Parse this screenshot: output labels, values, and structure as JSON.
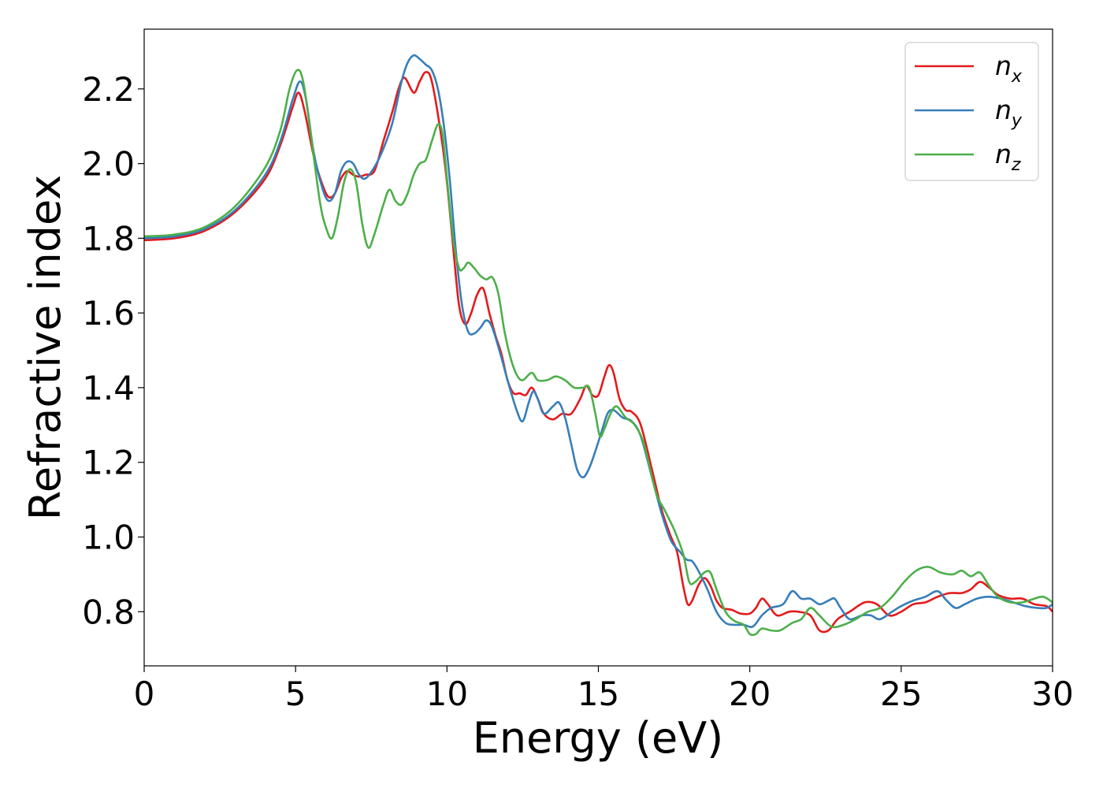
{
  "chart_data": {
    "type": "line",
    "xlabel": "Energy (eV)",
    "ylabel": "Refractive index",
    "xlim": [
      0,
      30
    ],
    "ylim": [
      0.655,
      2.36
    ],
    "x_ticks": [
      0,
      5,
      10,
      15,
      20,
      25,
      30
    ],
    "x_tick_labels": [
      "0",
      "5",
      "10",
      "15",
      "20",
      "25",
      "30"
    ],
    "y_ticks": [
      0.8,
      1.0,
      1.2,
      1.4,
      1.6,
      1.8,
      2.0,
      2.2
    ],
    "y_tick_labels": [
      "0.8",
      "1.0",
      "1.2",
      "1.4",
      "1.6",
      "1.8",
      "2.0",
      "2.2"
    ],
    "grid": false,
    "legend_position": "top-right",
    "series": [
      {
        "name": "n_x",
        "label_base": "n",
        "label_sub": "x",
        "color": "#e41a1c",
        "points": [
          [
            0,
            1.795
          ],
          [
            1,
            1.8
          ],
          [
            2,
            1.82
          ],
          [
            3,
            1.87
          ],
          [
            4,
            1.96
          ],
          [
            4.5,
            2.05
          ],
          [
            4.9,
            2.15
          ],
          [
            5.1,
            2.19
          ],
          [
            5.3,
            2.14
          ],
          [
            5.6,
            2.02
          ],
          [
            5.9,
            1.94
          ],
          [
            6.1,
            1.91
          ],
          [
            6.3,
            1.92
          ],
          [
            6.5,
            1.96
          ],
          [
            6.7,
            1.98
          ],
          [
            6.9,
            1.97
          ],
          [
            7.1,
            1.965
          ],
          [
            7.3,
            1.97
          ],
          [
            7.6,
            1.98
          ],
          [
            7.9,
            2.06
          ],
          [
            8.2,
            2.14
          ],
          [
            8.4,
            2.2
          ],
          [
            8.6,
            2.23
          ],
          [
            8.9,
            2.19
          ],
          [
            9.1,
            2.22
          ],
          [
            9.3,
            2.245
          ],
          [
            9.5,
            2.22
          ],
          [
            9.8,
            2.08
          ],
          [
            10.0,
            1.95
          ],
          [
            10.2,
            1.78
          ],
          [
            10.4,
            1.62
          ],
          [
            10.6,
            1.57
          ],
          [
            10.8,
            1.6
          ],
          [
            11.0,
            1.65
          ],
          [
            11.2,
            1.665
          ],
          [
            11.4,
            1.6
          ],
          [
            11.6,
            1.54
          ],
          [
            11.8,
            1.49
          ],
          [
            12.0,
            1.42
          ],
          [
            12.2,
            1.385
          ],
          [
            12.4,
            1.385
          ],
          [
            12.6,
            1.38
          ],
          [
            12.8,
            1.4
          ],
          [
            13.0,
            1.37
          ],
          [
            13.2,
            1.33
          ],
          [
            13.5,
            1.315
          ],
          [
            13.8,
            1.33
          ],
          [
            14.1,
            1.33
          ],
          [
            14.4,
            1.37
          ],
          [
            14.6,
            1.405
          ],
          [
            14.8,
            1.38
          ],
          [
            15.0,
            1.38
          ],
          [
            15.2,
            1.43
          ],
          [
            15.35,
            1.46
          ],
          [
            15.5,
            1.44
          ],
          [
            15.7,
            1.37
          ],
          [
            15.9,
            1.34
          ],
          [
            16.1,
            1.335
          ],
          [
            16.4,
            1.3
          ],
          [
            16.8,
            1.17
          ],
          [
            17.1,
            1.07
          ],
          [
            17.4,
            1.0
          ],
          [
            17.6,
            0.96
          ],
          [
            17.8,
            0.87
          ],
          [
            17.95,
            0.82
          ],
          [
            18.1,
            0.83
          ],
          [
            18.3,
            0.87
          ],
          [
            18.5,
            0.89
          ],
          [
            18.7,
            0.87
          ],
          [
            18.9,
            0.83
          ],
          [
            19.1,
            0.81
          ],
          [
            19.4,
            0.805
          ],
          [
            19.7,
            0.795
          ],
          [
            20.0,
            0.795
          ],
          [
            20.2,
            0.81
          ],
          [
            20.4,
            0.835
          ],
          [
            20.6,
            0.82
          ],
          [
            20.9,
            0.79
          ],
          [
            21.3,
            0.8
          ],
          [
            21.6,
            0.8
          ],
          [
            22.0,
            0.79
          ],
          [
            22.3,
            0.75
          ],
          [
            22.6,
            0.75
          ],
          [
            22.9,
            0.78
          ],
          [
            23.3,
            0.8
          ],
          [
            23.8,
            0.825
          ],
          [
            24.2,
            0.82
          ],
          [
            24.6,
            0.79
          ],
          [
            25.0,
            0.8
          ],
          [
            25.4,
            0.82
          ],
          [
            25.8,
            0.825
          ],
          [
            26.2,
            0.84
          ],
          [
            26.6,
            0.85
          ],
          [
            27.0,
            0.85
          ],
          [
            27.3,
            0.86
          ],
          [
            27.6,
            0.88
          ],
          [
            27.9,
            0.865
          ],
          [
            28.2,
            0.845
          ],
          [
            28.6,
            0.835
          ],
          [
            29.0,
            0.835
          ],
          [
            29.4,
            0.82
          ],
          [
            29.8,
            0.815
          ],
          [
            30,
            0.8
          ]
        ]
      },
      {
        "name": "n_y",
        "label_base": "n",
        "label_sub": "y",
        "color": "#377eb8",
        "points": [
          [
            0,
            1.8
          ],
          [
            1,
            1.805
          ],
          [
            2,
            1.825
          ],
          [
            3,
            1.875
          ],
          [
            4,
            1.97
          ],
          [
            4.5,
            2.06
          ],
          [
            4.9,
            2.17
          ],
          [
            5.15,
            2.22
          ],
          [
            5.35,
            2.17
          ],
          [
            5.6,
            2.03
          ],
          [
            5.9,
            1.93
          ],
          [
            6.1,
            1.9
          ],
          [
            6.3,
            1.92
          ],
          [
            6.5,
            1.98
          ],
          [
            6.7,
            2.005
          ],
          [
            6.9,
            2.0
          ],
          [
            7.1,
            1.97
          ],
          [
            7.3,
            1.96
          ],
          [
            7.6,
            1.99
          ],
          [
            7.9,
            2.04
          ],
          [
            8.2,
            2.11
          ],
          [
            8.5,
            2.22
          ],
          [
            8.7,
            2.27
          ],
          [
            8.9,
            2.29
          ],
          [
            9.1,
            2.28
          ],
          [
            9.3,
            2.265
          ],
          [
            9.5,
            2.25
          ],
          [
            9.7,
            2.2
          ],
          [
            9.9,
            2.1
          ],
          [
            10.1,
            1.95
          ],
          [
            10.3,
            1.76
          ],
          [
            10.5,
            1.62
          ],
          [
            10.7,
            1.55
          ],
          [
            10.9,
            1.545
          ],
          [
            11.1,
            1.56
          ],
          [
            11.3,
            1.58
          ],
          [
            11.5,
            1.56
          ],
          [
            11.8,
            1.48
          ],
          [
            12.0,
            1.42
          ],
          [
            12.3,
            1.34
          ],
          [
            12.5,
            1.31
          ],
          [
            12.7,
            1.36
          ],
          [
            12.85,
            1.39
          ],
          [
            13.0,
            1.37
          ],
          [
            13.2,
            1.33
          ],
          [
            13.5,
            1.35
          ],
          [
            13.7,
            1.36
          ],
          [
            13.9,
            1.32
          ],
          [
            14.1,
            1.25
          ],
          [
            14.3,
            1.18
          ],
          [
            14.5,
            1.16
          ],
          [
            14.7,
            1.185
          ],
          [
            14.9,
            1.23
          ],
          [
            15.1,
            1.28
          ],
          [
            15.3,
            1.33
          ],
          [
            15.5,
            1.34
          ],
          [
            15.8,
            1.32
          ],
          [
            16.1,
            1.31
          ],
          [
            16.4,
            1.27
          ],
          [
            16.8,
            1.15
          ],
          [
            17.1,
            1.06
          ],
          [
            17.4,
            0.99
          ],
          [
            17.7,
            0.96
          ],
          [
            17.9,
            0.94
          ],
          [
            18.1,
            0.935
          ],
          [
            18.3,
            0.91
          ],
          [
            18.6,
            0.86
          ],
          [
            18.9,
            0.8
          ],
          [
            19.2,
            0.77
          ],
          [
            19.5,
            0.765
          ],
          [
            19.8,
            0.765
          ],
          [
            20.1,
            0.76
          ],
          [
            20.4,
            0.79
          ],
          [
            20.7,
            0.81
          ],
          [
            21.1,
            0.82
          ],
          [
            21.4,
            0.855
          ],
          [
            21.7,
            0.835
          ],
          [
            22.0,
            0.835
          ],
          [
            22.3,
            0.82
          ],
          [
            22.6,
            0.83
          ],
          [
            22.8,
            0.835
          ],
          [
            23.0,
            0.81
          ],
          [
            23.3,
            0.78
          ],
          [
            23.7,
            0.79
          ],
          [
            24.0,
            0.79
          ],
          [
            24.3,
            0.78
          ],
          [
            24.7,
            0.8
          ],
          [
            25.0,
            0.815
          ],
          [
            25.4,
            0.83
          ],
          [
            25.8,
            0.84
          ],
          [
            26.2,
            0.855
          ],
          [
            26.5,
            0.83
          ],
          [
            26.8,
            0.81
          ],
          [
            27.1,
            0.82
          ],
          [
            27.5,
            0.835
          ],
          [
            27.9,
            0.84
          ],
          [
            28.3,
            0.835
          ],
          [
            28.7,
            0.825
          ],
          [
            29.1,
            0.815
          ],
          [
            29.5,
            0.81
          ],
          [
            29.8,
            0.81
          ],
          [
            30,
            0.82
          ]
        ]
      },
      {
        "name": "n_z",
        "label_base": "n",
        "label_sub": "z",
        "color": "#4daf4a",
        "points": [
          [
            0,
            1.805
          ],
          [
            1,
            1.81
          ],
          [
            2,
            1.83
          ],
          [
            3,
            1.885
          ],
          [
            4,
            1.99
          ],
          [
            4.5,
            2.09
          ],
          [
            4.8,
            2.2
          ],
          [
            5.05,
            2.25
          ],
          [
            5.25,
            2.22
          ],
          [
            5.5,
            2.08
          ],
          [
            5.8,
            1.9
          ],
          [
            6.0,
            1.83
          ],
          [
            6.2,
            1.8
          ],
          [
            6.4,
            1.86
          ],
          [
            6.6,
            1.95
          ],
          [
            6.8,
            1.985
          ],
          [
            7.0,
            1.95
          ],
          [
            7.2,
            1.84
          ],
          [
            7.4,
            1.775
          ],
          [
            7.6,
            1.81
          ],
          [
            7.9,
            1.89
          ],
          [
            8.1,
            1.93
          ],
          [
            8.3,
            1.9
          ],
          [
            8.5,
            1.89
          ],
          [
            8.7,
            1.92
          ],
          [
            8.9,
            1.97
          ],
          [
            9.1,
            2.0
          ],
          [
            9.3,
            2.01
          ],
          [
            9.5,
            2.06
          ],
          [
            9.7,
            2.105
          ],
          [
            9.85,
            2.08
          ],
          [
            10.0,
            1.96
          ],
          [
            10.2,
            1.8
          ],
          [
            10.4,
            1.72
          ],
          [
            10.55,
            1.72
          ],
          [
            10.7,
            1.735
          ],
          [
            10.9,
            1.72
          ],
          [
            11.1,
            1.7
          ],
          [
            11.3,
            1.69
          ],
          [
            11.5,
            1.695
          ],
          [
            11.7,
            1.65
          ],
          [
            11.9,
            1.55
          ],
          [
            12.1,
            1.48
          ],
          [
            12.3,
            1.435
          ],
          [
            12.5,
            1.42
          ],
          [
            12.8,
            1.44
          ],
          [
            13.0,
            1.42
          ],
          [
            13.3,
            1.42
          ],
          [
            13.6,
            1.43
          ],
          [
            13.9,
            1.42
          ],
          [
            14.2,
            1.4
          ],
          [
            14.5,
            1.4
          ],
          [
            14.7,
            1.4
          ],
          [
            14.9,
            1.33
          ],
          [
            15.05,
            1.27
          ],
          [
            15.2,
            1.29
          ],
          [
            15.4,
            1.33
          ],
          [
            15.6,
            1.35
          ],
          [
            15.9,
            1.32
          ],
          [
            16.2,
            1.3
          ],
          [
            16.5,
            1.25
          ],
          [
            16.9,
            1.12
          ],
          [
            17.2,
            1.07
          ],
          [
            17.5,
            1.02
          ],
          [
            17.8,
            0.955
          ],
          [
            18.0,
            0.88
          ],
          [
            18.2,
            0.88
          ],
          [
            18.5,
            0.905
          ],
          [
            18.7,
            0.905
          ],
          [
            18.9,
            0.86
          ],
          [
            19.2,
            0.8
          ],
          [
            19.5,
            0.775
          ],
          [
            19.8,
            0.765
          ],
          [
            20.0,
            0.74
          ],
          [
            20.2,
            0.74
          ],
          [
            20.4,
            0.755
          ],
          [
            20.7,
            0.75
          ],
          [
            21.0,
            0.75
          ],
          [
            21.4,
            0.77
          ],
          [
            21.7,
            0.78
          ],
          [
            22.0,
            0.81
          ],
          [
            22.3,
            0.79
          ],
          [
            22.7,
            0.76
          ],
          [
            23.1,
            0.765
          ],
          [
            23.5,
            0.78
          ],
          [
            23.9,
            0.8
          ],
          [
            24.3,
            0.81
          ],
          [
            24.7,
            0.84
          ],
          [
            25.1,
            0.88
          ],
          [
            25.5,
            0.91
          ],
          [
            25.9,
            0.92
          ],
          [
            26.3,
            0.905
          ],
          [
            26.7,
            0.9
          ],
          [
            27.0,
            0.91
          ],
          [
            27.3,
            0.895
          ],
          [
            27.6,
            0.905
          ],
          [
            27.9,
            0.87
          ],
          [
            28.2,
            0.84
          ],
          [
            28.6,
            0.825
          ],
          [
            29.0,
            0.825
          ],
          [
            29.4,
            0.835
          ],
          [
            29.7,
            0.84
          ],
          [
            30,
            0.825
          ]
        ]
      }
    ]
  }
}
